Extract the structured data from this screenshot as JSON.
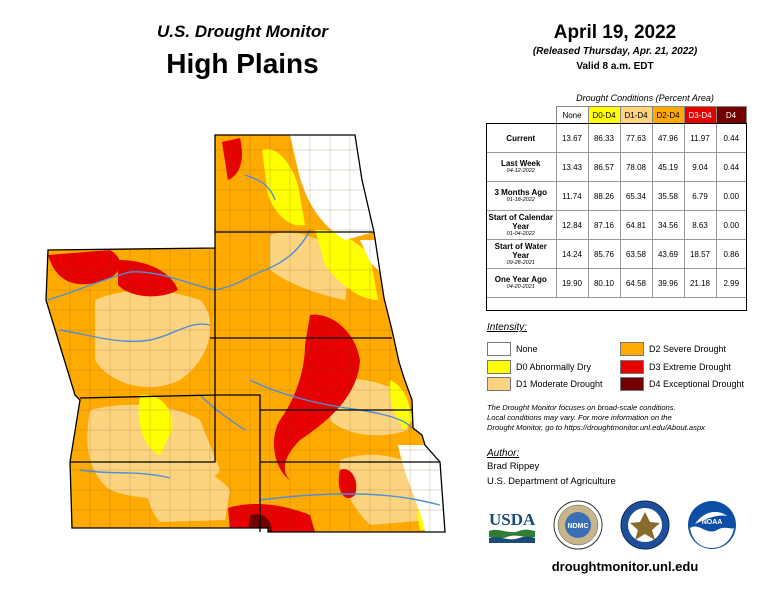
{
  "header": {
    "subtitle": "U.S. Drought Monitor",
    "title": "High Plains"
  },
  "date": {
    "main": "April 19, 2022",
    "released": "(Released Thursday, Apr. 21, 2022)",
    "valid": "Valid 8 a.m. EDT"
  },
  "table": {
    "caption": "Drought Conditions (Percent Area)",
    "columns": [
      "None",
      "D0-D4",
      "D1-D4",
      "D2-D4",
      "D3-D4",
      "D4"
    ],
    "column_colors": [
      "#ffffff",
      "#ffff00",
      "#fcd37f",
      "#ffaa00",
      "#e60000",
      "#730000"
    ],
    "column_text_colors": [
      "#000000",
      "#000000",
      "#000000",
      "#000000",
      "#ffffff",
      "#ffffff"
    ],
    "rows": [
      {
        "label": "Current",
        "date": "",
        "values": [
          "13.67",
          "86.33",
          "77.63",
          "47.96",
          "11.97",
          "0.44"
        ]
      },
      {
        "label": "Last Week",
        "date": "04-12-2022",
        "values": [
          "13.43",
          "86.57",
          "78.08",
          "45.19",
          "9.04",
          "0.44"
        ]
      },
      {
        "label": "3 Months Ago",
        "date": "01-18-2022",
        "values": [
          "11.74",
          "88.26",
          "65.34",
          "35.58",
          "6.79",
          "0.00"
        ]
      },
      {
        "label": "Start of Calendar Year",
        "date": "01-04-2022",
        "values": [
          "12.84",
          "87.16",
          "64.81",
          "34.56",
          "8.63",
          "0.00"
        ]
      },
      {
        "label": "Start of Water Year",
        "date": "09-28-2021",
        "values": [
          "14.24",
          "85.76",
          "63.58",
          "43.69",
          "18.57",
          "0.86"
        ]
      },
      {
        "label": "One Year Ago",
        "date": "04-20-2021",
        "values": [
          "19.90",
          "80.10",
          "64.58",
          "39.96",
          "21.18",
          "2.99"
        ]
      }
    ]
  },
  "legend": {
    "title": "Intensity:",
    "items": [
      {
        "label": "None",
        "color": "#ffffff"
      },
      {
        "label": "D0 Abnormally Dry",
        "color": "#ffff00"
      },
      {
        "label": "D1 Moderate Drought",
        "color": "#fcd37f"
      },
      {
        "label": "D2 Severe Drought",
        "color": "#ffaa00"
      },
      {
        "label": "D3 Extreme Drought",
        "color": "#e60000"
      },
      {
        "label": "D4 Exceptional Drought",
        "color": "#730000"
      }
    ]
  },
  "note": {
    "line1": "The Drought Monitor focuses on broad-scale conditions.",
    "line2": "Local conditions may vary. For more information on the",
    "line3": "Drought Monitor, go to https://droughtmonitor.unl.edu/About.aspx"
  },
  "author": {
    "title": "Author:",
    "name": "Brad Rippey",
    "org": "U.S. Department of Agriculture"
  },
  "logos": {
    "usda": "USDA",
    "ndmc": "NDMC",
    "noaa": "NOAA"
  },
  "footer_url": "droughtmonitor.unl.edu",
  "map_colors": {
    "none": "#ffffff",
    "d0": "#ffff00",
    "d1": "#fcd37f",
    "d2": "#ffaa00",
    "d3": "#e60000",
    "d4": "#730000",
    "water": "#4f8fd8"
  }
}
